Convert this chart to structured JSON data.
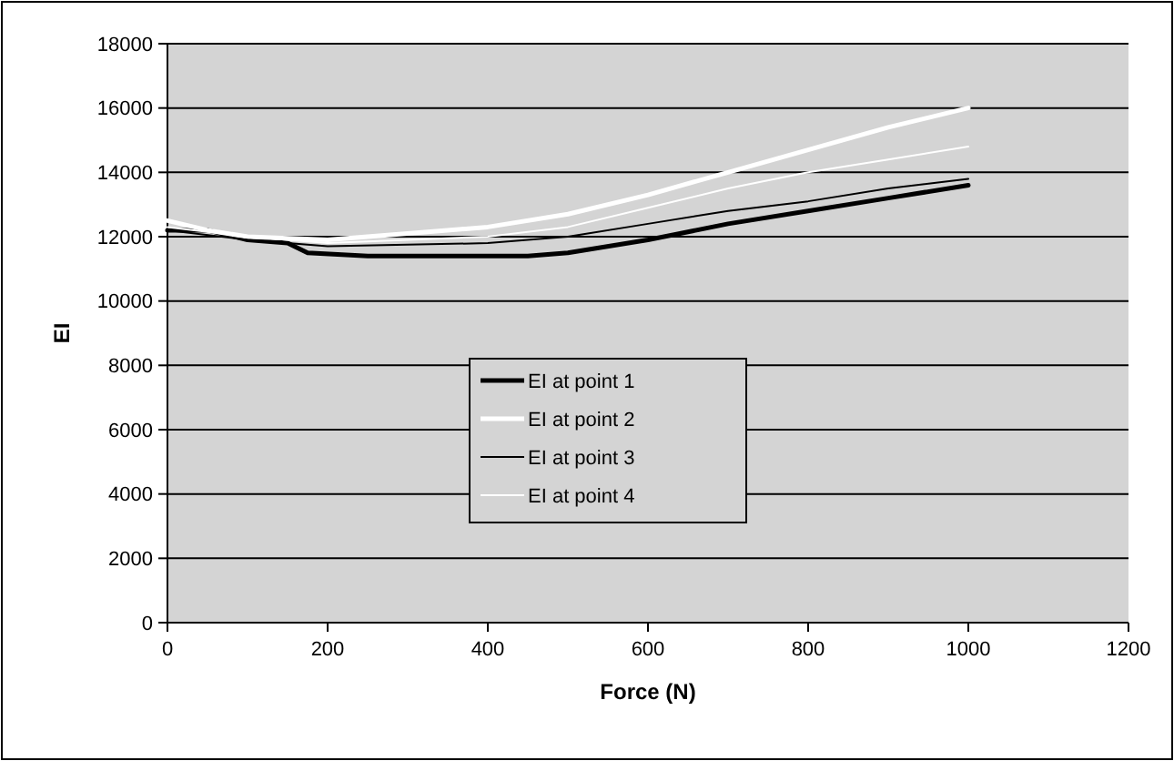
{
  "chart_data": {
    "type": "line",
    "xlabel": "Force (N)",
    "ylabel": "EI",
    "xlim": [
      0,
      1200
    ],
    "xticks": [
      0,
      200,
      400,
      600,
      800,
      1000,
      1200
    ],
    "ylim": [
      0,
      18000
    ],
    "yticks": [
      0,
      2000,
      4000,
      6000,
      8000,
      10000,
      12000,
      14000,
      16000,
      18000
    ],
    "grid": "y",
    "legend": "center",
    "series": [
      {
        "name": "EI at point 1",
        "color": "#000000",
        "x": [
          0,
          50,
          100,
          150,
          175,
          250,
          450,
          500,
          600,
          700,
          800,
          900,
          1000
        ],
        "values": [
          12200,
          12200,
          11900,
          11800,
          11500,
          11400,
          11400,
          11500,
          11900,
          12400,
          12800,
          13200,
          13600
        ]
      },
      {
        "name": "EI at point 2",
        "color": "#ffffff",
        "x": [
          0,
          50,
          100,
          200,
          300,
          400,
          500,
          600,
          700,
          800,
          900,
          1000
        ],
        "values": [
          12500,
          12200,
          12000,
          11900,
          12100,
          12300,
          12700,
          13300,
          14000,
          14700,
          15400,
          16000
        ]
      },
      {
        "name": "EI at point 3",
        "color": "#000000",
        "x": [
          0,
          100,
          200,
          400,
          500,
          600,
          700,
          800,
          900,
          1000
        ],
        "values": [
          12200,
          11900,
          11700,
          11800,
          12000,
          12400,
          12800,
          13100,
          13500,
          13800
        ]
      },
      {
        "name": "EI at point 4",
        "color": "#ffffff",
        "x": [
          0,
          100,
          200,
          400,
          500,
          600,
          700,
          800,
          900,
          1000
        ],
        "values": [
          12300,
          12000,
          11800,
          12000,
          12300,
          12900,
          13500,
          14000,
          14400,
          14800
        ]
      }
    ]
  }
}
